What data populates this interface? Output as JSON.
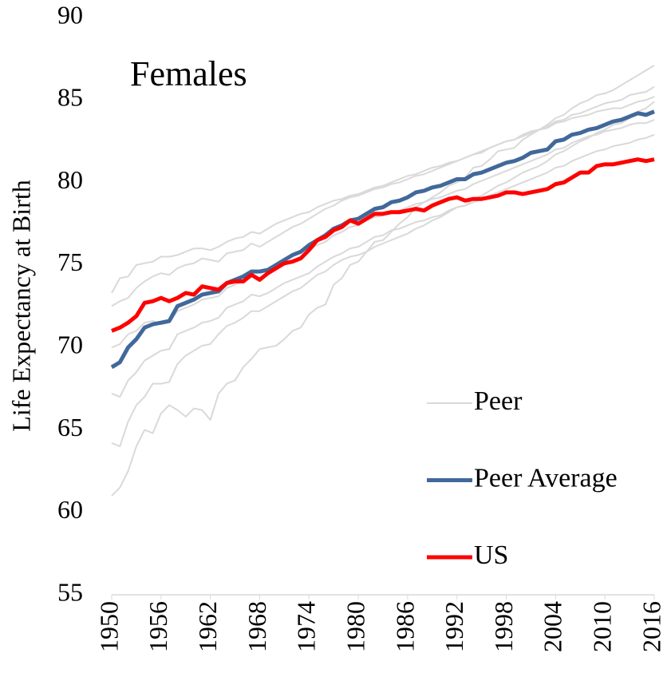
{
  "chart_data": {
    "type": "line",
    "annotation": "Females",
    "y_label": "Life Expectancy at Birth",
    "x": [
      1950,
      1951,
      1952,
      1953,
      1954,
      1955,
      1956,
      1957,
      1958,
      1959,
      1960,
      1961,
      1962,
      1963,
      1964,
      1965,
      1966,
      1967,
      1968,
      1969,
      1970,
      1971,
      1972,
      1973,
      1974,
      1975,
      1976,
      1977,
      1978,
      1979,
      1980,
      1981,
      1982,
      1983,
      1984,
      1985,
      1986,
      1987,
      1988,
      1989,
      1990,
      1991,
      1992,
      1993,
      1994,
      1995,
      1996,
      1997,
      1998,
      1999,
      2000,
      2001,
      2002,
      2003,
      2004,
      2005,
      2006,
      2007,
      2008,
      2009,
      2010,
      2011,
      2012,
      2013,
      2014,
      2015,
      2016
    ],
    "xlim": [
      1950,
      2016
    ],
    "xticks": [
      1950,
      1956,
      1962,
      1968,
      1974,
      1980,
      1986,
      1992,
      1998,
      2004,
      2010,
      2016
    ],
    "ylim": [
      55,
      90
    ],
    "yticks": [
      55,
      60,
      65,
      70,
      75,
      80,
      85,
      90
    ],
    "grid": false,
    "legend_position": "lower right",
    "series": [
      {
        "name": "Peer",
        "color": "#d9d9d9",
        "values": [
          61.0,
          61.5,
          62.5,
          64.0,
          65.0,
          64.8,
          66.0,
          66.5,
          66.2,
          65.8,
          66.3,
          66.2,
          65.6,
          67.2,
          67.8,
          68.0,
          68.8,
          69.3,
          69.9,
          70.0,
          70.1,
          70.5,
          71.0,
          71.2,
          72.0,
          72.4,
          72.6,
          73.8,
          74.2,
          75.0,
          75.2,
          75.8,
          76.4,
          76.5,
          77.0,
          77.5,
          77.9,
          78.5,
          78.8,
          79.1,
          79.4,
          79.8,
          80.0,
          80.3,
          80.9,
          81.0,
          81.4,
          81.9,
          82.0,
          82.1,
          82.6,
          82.9,
          83.2,
          83.5,
          83.9,
          84.1,
          84.5,
          84.8,
          85.0,
          85.3,
          85.4,
          85.6,
          85.9,
          86.2,
          86.5,
          86.8,
          87.1
        ]
      },
      {
        "name": "Peer",
        "color": "#d9d9d9",
        "values": [
          64.2,
          64.0,
          65.5,
          66.5,
          67.0,
          67.8,
          67.8,
          67.9,
          69.0,
          69.5,
          69.8,
          70.1,
          70.2,
          70.8,
          71.3,
          71.5,
          71.8,
          72.2,
          72.2,
          72.5,
          72.8,
          73.1,
          73.4,
          73.6,
          74.0,
          74.4,
          74.6,
          75.0,
          75.3,
          75.5,
          75.6,
          75.8,
          76.1,
          76.3,
          76.5,
          76.7,
          76.9,
          77.2,
          77.4,
          77.7,
          77.9,
          78.2,
          78.5,
          78.6,
          79.0,
          79.2,
          79.5,
          79.8,
          80.0,
          80.3,
          80.6,
          80.8,
          81.0,
          81.3,
          81.7,
          81.9,
          82.2,
          82.5,
          82.7,
          83.0,
          83.2,
          83.5,
          83.6,
          83.9,
          84.3,
          84.5,
          84.9
        ]
      },
      {
        "name": "Peer",
        "color": "#d9d9d9",
        "values": [
          73.3,
          74.2,
          74.3,
          75.0,
          75.1,
          75.2,
          75.5,
          75.5,
          75.6,
          75.8,
          76.0,
          76.0,
          75.9,
          76.1,
          76.4,
          76.6,
          76.7,
          77.0,
          76.9,
          77.2,
          77.5,
          77.7,
          77.9,
          78.1,
          78.2,
          78.5,
          78.7,
          78.9,
          79.0,
          79.2,
          79.3,
          79.5,
          79.7,
          79.8,
          80.0,
          80.2,
          80.4,
          80.5,
          80.7,
          80.9,
          81.0,
          81.2,
          81.3,
          81.5,
          81.7,
          81.8,
          82.1,
          82.3,
          82.5,
          82.6,
          82.8,
          83.0,
          83.2,
          83.3,
          83.6,
          83.7,
          83.9,
          84.0,
          84.1,
          84.3,
          84.4,
          84.5,
          84.5,
          84.7,
          84.9,
          85.0,
          85.2
        ]
      },
      {
        "name": "Peer",
        "color": "#d9d9d9",
        "values": [
          67.2,
          67.0,
          68.0,
          68.5,
          69.2,
          69.5,
          69.8,
          69.9,
          70.8,
          71.0,
          71.2,
          71.5,
          71.6,
          71.8,
          72.4,
          72.6,
          72.8,
          73.2,
          73.1,
          73.3,
          73.6,
          73.9,
          74.1,
          74.3,
          74.5,
          74.9,
          75.2,
          75.5,
          75.7,
          76.0,
          76.1,
          76.4,
          76.7,
          76.8,
          77.1,
          77.2,
          77.4,
          77.6,
          77.7,
          77.9,
          78.0,
          78.3,
          78.5,
          78.6,
          78.8,
          79.0,
          79.2,
          79.4,
          79.6,
          79.8,
          80.0,
          80.2,
          80.4,
          80.6,
          80.9,
          81.0,
          81.3,
          81.5,
          81.7,
          81.9,
          82.0,
          82.2,
          82.3,
          82.4,
          82.6,
          82.7,
          82.9
        ]
      },
      {
        "name": "Peer",
        "color": "#d9d9d9",
        "values": [
          72.5,
          72.8,
          73.0,
          73.6,
          74.0,
          74.3,
          74.5,
          74.4,
          74.8,
          75.0,
          75.1,
          75.4,
          75.3,
          75.2,
          75.7,
          75.8,
          75.9,
          76.3,
          76.1,
          76.4,
          76.7,
          77.0,
          77.3,
          77.5,
          77.8,
          78.1,
          78.4,
          78.6,
          78.9,
          79.1,
          79.2,
          79.4,
          79.6,
          79.7,
          79.9,
          80.0,
          80.2,
          80.4,
          80.5,
          80.7,
          80.9,
          81.1,
          81.3,
          81.5,
          81.7,
          81.9,
          82.1,
          82.3,
          82.5,
          82.6,
          82.9,
          83.1,
          83.2,
          83.4,
          83.7,
          83.8,
          84.1,
          84.2,
          84.4,
          84.6,
          84.8,
          84.9,
          85.0,
          85.3,
          85.4,
          85.5,
          85.8
        ]
      },
      {
        "name": "Peer",
        "color": "#d9d9d9",
        "values": [
          70.0,
          70.2,
          70.8,
          71.0,
          71.5,
          71.6,
          71.4,
          71.5,
          72.2,
          72.4,
          72.6,
          72.9,
          73.0,
          73.1,
          73.6,
          73.8,
          74.0,
          74.3,
          74.2,
          74.5,
          74.8,
          75.0,
          75.3,
          75.5,
          75.9,
          76.2,
          76.4,
          76.8,
          77.0,
          77.3,
          77.4,
          77.7,
          77.9,
          78.0,
          78.2,
          78.3,
          78.5,
          78.7,
          78.8,
          79.0,
          79.1,
          79.3,
          79.5,
          79.6,
          79.9,
          80.1,
          80.3,
          80.5,
          80.7,
          80.9,
          81.1,
          81.3,
          81.5,
          81.7,
          82.0,
          82.1,
          82.4,
          82.6,
          82.8,
          82.9,
          83.1,
          83.2,
          83.3,
          83.5,
          83.6,
          83.6,
          83.8
        ]
      },
      {
        "name": "Peer Average",
        "color": "#41689a",
        "values": [
          68.8,
          69.1,
          70.0,
          70.5,
          71.2,
          71.4,
          71.5,
          71.6,
          72.5,
          72.7,
          72.9,
          73.2,
          73.3,
          73.4,
          73.9,
          74.1,
          74.3,
          74.6,
          74.6,
          74.7,
          75.0,
          75.3,
          75.6,
          75.8,
          76.2,
          76.5,
          76.8,
          77.2,
          77.4,
          77.7,
          77.8,
          78.1,
          78.4,
          78.5,
          78.8,
          78.9,
          79.1,
          79.4,
          79.5,
          79.7,
          79.8,
          80.0,
          80.2,
          80.2,
          80.5,
          80.6,
          80.8,
          81.0,
          81.2,
          81.3,
          81.5,
          81.8,
          81.9,
          82.0,
          82.5,
          82.6,
          82.9,
          83.0,
          83.2,
          83.3,
          83.5,
          83.7,
          83.8,
          84.0,
          84.2,
          84.1,
          84.3
        ]
      },
      {
        "name": "US",
        "color": "#ff0000",
        "values": [
          71.0,
          71.2,
          71.5,
          71.9,
          72.7,
          72.8,
          73.0,
          72.8,
          73.0,
          73.3,
          73.2,
          73.7,
          73.6,
          73.5,
          73.9,
          74.0,
          74.0,
          74.4,
          74.1,
          74.5,
          74.8,
          75.1,
          75.2,
          75.4,
          75.9,
          76.5,
          76.7,
          77.1,
          77.3,
          77.7,
          77.5,
          77.8,
          78.1,
          78.1,
          78.2,
          78.2,
          78.3,
          78.4,
          78.3,
          78.6,
          78.8,
          79.0,
          79.1,
          78.9,
          79.0,
          79.0,
          79.1,
          79.2,
          79.4,
          79.4,
          79.3,
          79.4,
          79.5,
          79.6,
          79.9,
          80.0,
          80.3,
          80.6,
          80.6,
          81.0,
          81.1,
          81.1,
          81.2,
          81.3,
          81.4,
          81.3,
          81.4
        ]
      }
    ]
  }
}
